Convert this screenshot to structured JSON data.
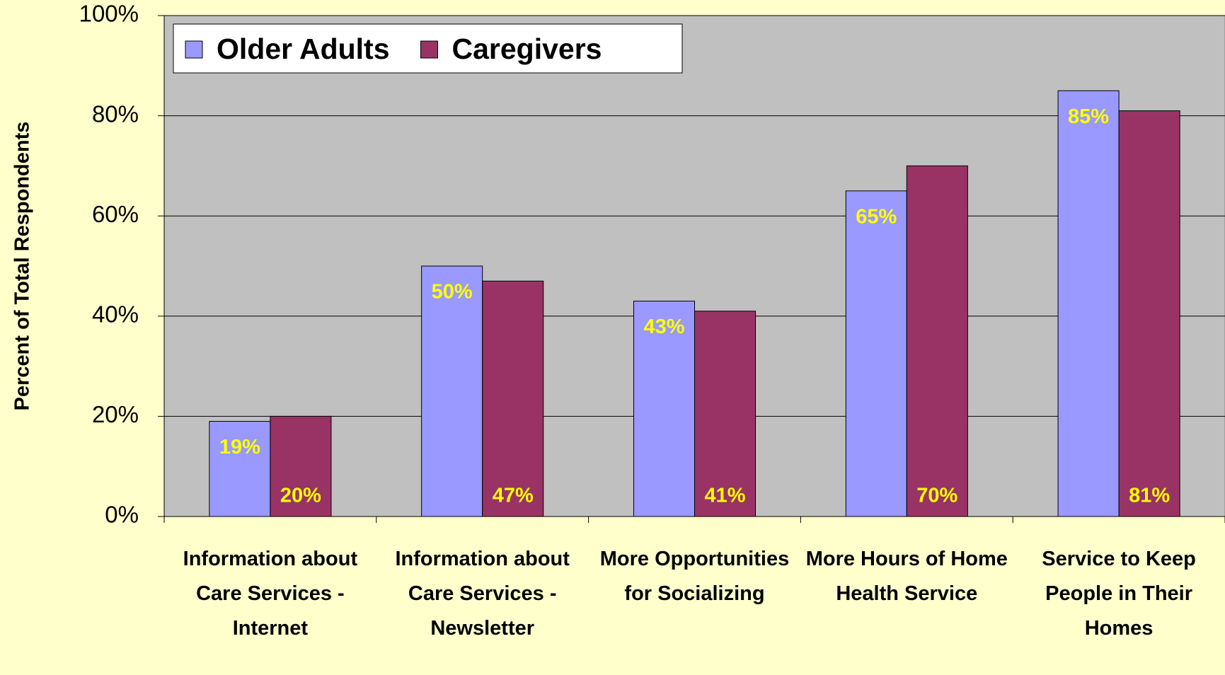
{
  "chart_data": {
    "type": "bar",
    "y_label": "Percent of Total Respondents",
    "categories": [
      "Information about Care Services - Internet",
      "Information about Care Services - Newsletter",
      "More Opportunities for Socializing",
      "More Hours of Home Health Service",
      "Service to Keep People in Their Homes"
    ],
    "series": [
      {
        "name": "Older Adults",
        "color": "#9999ff",
        "values": [
          19,
          50,
          43,
          65,
          85
        ],
        "value_labels": [
          "19%",
          "50%",
          "43%",
          "65%",
          "85%"
        ]
      },
      {
        "name": "Caregivers",
        "color": "#993366",
        "values": [
          20,
          47,
          41,
          70,
          81
        ],
        "value_labels": [
          "20%",
          "47%",
          "41%",
          "70%",
          "81%"
        ]
      }
    ],
    "ylim": [
      0,
      100
    ],
    "yticks": [
      {
        "value": 0,
        "label": "0%"
      },
      {
        "value": 20,
        "label": "20%"
      },
      {
        "value": 40,
        "label": "40%"
      },
      {
        "value": 60,
        "label": "60%"
      },
      {
        "value": 80,
        "label": "80%"
      },
      {
        "value": 100,
        "label": "100%"
      }
    ],
    "grid": true,
    "legend": "top-left",
    "plot_background": "#c0c0c0",
    "value_label_color": "#ffff00"
  }
}
